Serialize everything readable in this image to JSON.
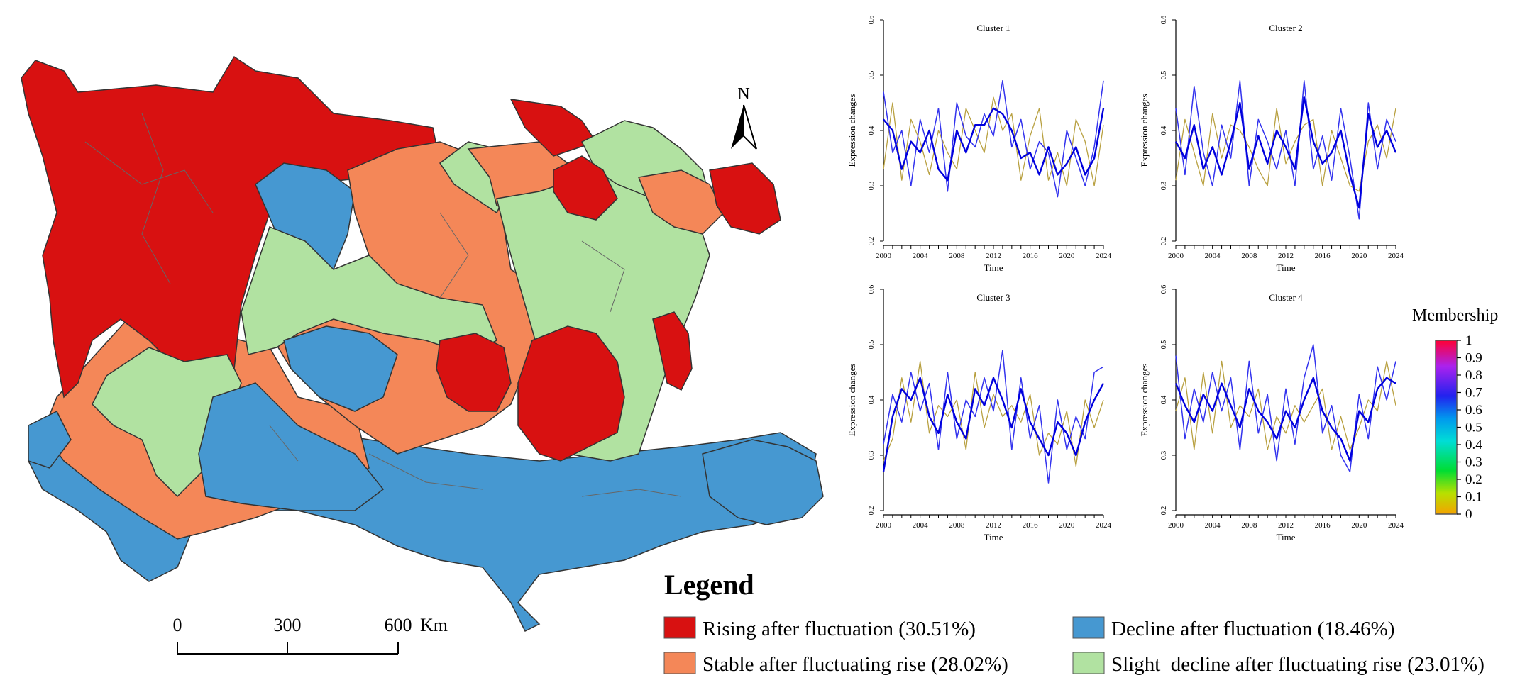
{
  "map": {
    "north_label": "N",
    "scale": {
      "labels": [
        "0",
        "300",
        "600"
      ],
      "unit": "Km"
    },
    "legend": {
      "title": "Legend",
      "items": [
        {
          "label": "Rising after fluctuation (30.51%)",
          "color": "#D81111"
        },
        {
          "label": "Decline after fluctuation (18.46%)",
          "color": "#4698D1"
        },
        {
          "label": "Stable after fluctuating rise (28.02%)",
          "color": "#F48758"
        },
        {
          "label": "Slight  decline after fluctuating rise (23.01%)",
          "color": "#B1E2A1"
        }
      ]
    }
  },
  "chart_data": {
    "type": "line",
    "panels": [
      {
        "title": "Cluster 1",
        "xlabel": "Time",
        "ylabel": "Expression changes",
        "xlim": [
          2000,
          2024
        ],
        "ylim": [
          0.2,
          0.6
        ],
        "xticks": [
          "2000",
          "2004",
          "2008",
          "2012",
          "2016",
          "2020",
          "2024"
        ],
        "yticks": [
          "0.2",
          "0.3",
          "0.4",
          "0.5",
          "0.6"
        ],
        "series": [
          {
            "name": "mean",
            "values": [
              0.42,
              0.4,
              0.33,
              0.38,
              0.36,
              0.4,
              0.33,
              0.31,
              0.4,
              0.36,
              0.41,
              0.41,
              0.44,
              0.43,
              0.4,
              0.35,
              0.36,
              0.32,
              0.37,
              0.32,
              0.34,
              0.37,
              0.32,
              0.35,
              0.44
            ]
          },
          {
            "name": "s1",
            "values": [
              0.47,
              0.36,
              0.4,
              0.3,
              0.42,
              0.36,
              0.44,
              0.29,
              0.45,
              0.39,
              0.37,
              0.43,
              0.39,
              0.49,
              0.37,
              0.42,
              0.33,
              0.38,
              0.36,
              0.28,
              0.4,
              0.35,
              0.3,
              0.37,
              0.49
            ]
          },
          {
            "name": "s2",
            "values": [
              0.33,
              0.45,
              0.31,
              0.42,
              0.38,
              0.32,
              0.4,
              0.36,
              0.33,
              0.44,
              0.4,
              0.36,
              0.46,
              0.4,
              0.43,
              0.31,
              0.39,
              0.44,
              0.31,
              0.36,
              0.3,
              0.42,
              0.38,
              0.3,
              0.41
            ]
          }
        ]
      },
      {
        "title": "Cluster 2",
        "xlabel": "Time",
        "ylabel": "Expression changes",
        "xlim": [
          2000,
          2024
        ],
        "ylim": [
          0.2,
          0.6
        ],
        "xticks": [
          "2000",
          "2004",
          "2008",
          "2012",
          "2016",
          "2020",
          "2024"
        ],
        "yticks": [
          "0.2",
          "0.3",
          "0.4",
          "0.5",
          "0.6"
        ],
        "series": [
          {
            "name": "mean",
            "values": [
              0.38,
              0.35,
              0.41,
              0.33,
              0.37,
              0.32,
              0.38,
              0.45,
              0.33,
              0.39,
              0.34,
              0.4,
              0.37,
              0.33,
              0.46,
              0.38,
              0.34,
              0.36,
              0.4,
              0.32,
              0.26,
              0.43,
              0.37,
              0.4,
              0.36
            ]
          },
          {
            "name": "s1",
            "values": [
              0.44,
              0.32,
              0.48,
              0.36,
              0.3,
              0.41,
              0.35,
              0.49,
              0.3,
              0.42,
              0.38,
              0.33,
              0.4,
              0.3,
              0.49,
              0.33,
              0.39,
              0.31,
              0.44,
              0.35,
              0.24,
              0.45,
              0.33,
              0.42,
              0.38
            ]
          },
          {
            "name": "s2",
            "values": [
              0.31,
              0.42,
              0.36,
              0.3,
              0.43,
              0.35,
              0.41,
              0.4,
              0.37,
              0.33,
              0.3,
              0.44,
              0.34,
              0.38,
              0.41,
              0.42,
              0.3,
              0.4,
              0.35,
              0.3,
              0.29,
              0.38,
              0.41,
              0.35,
              0.44
            ]
          }
        ]
      },
      {
        "title": "Cluster 3",
        "xlabel": "Time",
        "ylabel": "Expression changes",
        "xlim": [
          2000,
          2024
        ],
        "ylim": [
          0.2,
          0.6
        ],
        "xticks": [
          "2000",
          "2004",
          "2008",
          "2012",
          "2016",
          "2020",
          "2024"
        ],
        "yticks": [
          "0.2",
          "0.3",
          "0.4",
          "0.5",
          "0.6"
        ],
        "series": [
          {
            "name": "mean",
            "values": [
              0.27,
              0.37,
              0.42,
              0.4,
              0.44,
              0.37,
              0.34,
              0.41,
              0.36,
              0.33,
              0.42,
              0.39,
              0.44,
              0.4,
              0.35,
              0.42,
              0.36,
              0.33,
              0.3,
              0.36,
              0.34,
              0.3,
              0.36,
              0.4,
              0.43
            ]
          },
          {
            "name": "s1",
            "values": [
              0.32,
              0.41,
              0.36,
              0.45,
              0.38,
              0.43,
              0.31,
              0.45,
              0.33,
              0.4,
              0.37,
              0.44,
              0.38,
              0.49,
              0.31,
              0.44,
              0.33,
              0.39,
              0.25,
              0.4,
              0.31,
              0.37,
              0.33,
              0.45,
              0.46
            ]
          },
          {
            "name": "s2",
            "values": [
              0.29,
              0.33,
              0.44,
              0.36,
              0.47,
              0.34,
              0.39,
              0.37,
              0.4,
              0.31,
              0.45,
              0.35,
              0.41,
              0.37,
              0.39,
              0.36,
              0.41,
              0.3,
              0.34,
              0.32,
              0.38,
              0.28,
              0.4,
              0.35,
              0.4
            ]
          }
        ]
      },
      {
        "title": "Cluster 4",
        "xlabel": "Time",
        "ylabel": "Expression changes",
        "xlim": [
          2000,
          2024
        ],
        "ylim": [
          0.2,
          0.6
        ],
        "xticks": [
          "2000",
          "2004",
          "2008",
          "2012",
          "2016",
          "2020",
          "2024"
        ],
        "yticks": [
          "0.2",
          "0.3",
          "0.4",
          "0.5",
          "0.6"
        ],
        "series": [
          {
            "name": "mean",
            "values": [
              0.43,
              0.39,
              0.36,
              0.41,
              0.38,
              0.43,
              0.39,
              0.35,
              0.42,
              0.38,
              0.36,
              0.33,
              0.38,
              0.35,
              0.4,
              0.44,
              0.38,
              0.35,
              0.33,
              0.29,
              0.38,
              0.36,
              0.42,
              0.44,
              0.43
            ]
          },
          {
            "name": "s1",
            "values": [
              0.48,
              0.33,
              0.42,
              0.36,
              0.45,
              0.38,
              0.44,
              0.31,
              0.47,
              0.34,
              0.41,
              0.29,
              0.42,
              0.32,
              0.44,
              0.5,
              0.34,
              0.39,
              0.3,
              0.27,
              0.41,
              0.33,
              0.46,
              0.4,
              0.47
            ]
          },
          {
            "name": "s2",
            "values": [
              0.38,
              0.44,
              0.31,
              0.45,
              0.34,
              0.47,
              0.35,
              0.39,
              0.37,
              0.42,
              0.31,
              0.37,
              0.34,
              0.39,
              0.36,
              0.39,
              0.42,
              0.31,
              0.37,
              0.31,
              0.35,
              0.4,
              0.38,
              0.47,
              0.39
            ]
          }
        ]
      }
    ],
    "colorbar": {
      "title": "Membership",
      "ticks": [
        "1",
        "0.9",
        "0.8",
        "0.7",
        "0.6",
        "0.5",
        "0.4",
        "0.3",
        "0.2",
        "0.1",
        "0"
      ]
    }
  }
}
